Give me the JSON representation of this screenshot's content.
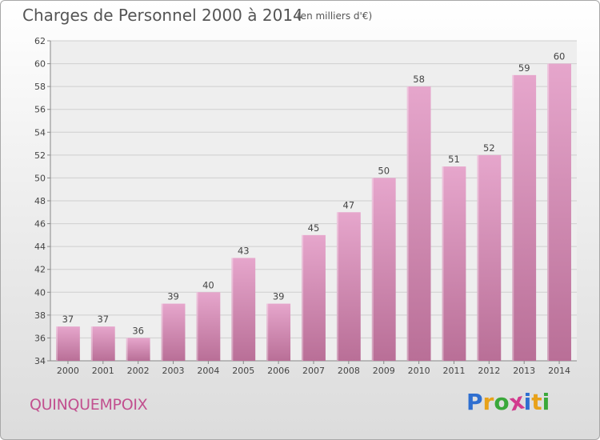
{
  "header": {
    "title": "Charges de Personnel 2000 à 2014",
    "subtitle": "(en milliers d'€)"
  },
  "footer": {
    "commune": "QUINQUEMPOIX",
    "logo_letters": [
      "P",
      "r",
      "o",
      "x",
      "i",
      "t",
      "i"
    ],
    "logo_colors": [
      "#2f6fd0",
      "#e8a21a",
      "#3aa83a",
      "#d23b8e",
      "#2f6fd0",
      "#e8a21a",
      "#3aa83a"
    ]
  },
  "colors": {
    "bar_light": "#e6a6cc",
    "bar_dark": "#b96f97",
    "grid": "#cfcfcf",
    "axis": "#888888"
  },
  "chart_data": {
    "type": "bar",
    "title": "Charges de Personnel 2000 à 2014",
    "subtitle": "(en milliers d'€)",
    "xlabel": "",
    "ylabel": "",
    "categories": [
      "2000",
      "2001",
      "2002",
      "2003",
      "2004",
      "2005",
      "2006",
      "2007",
      "2008",
      "2009",
      "2010",
      "2011",
      "2012",
      "2013",
      "2014"
    ],
    "values": [
      37,
      37,
      36,
      39,
      40,
      43,
      39,
      45,
      47,
      50,
      58,
      51,
      52,
      59,
      60
    ],
    "ylim": [
      34,
      62
    ],
    "yticks": [
      34,
      36,
      38,
      40,
      42,
      44,
      46,
      48,
      50,
      52,
      54,
      56,
      58,
      60,
      62
    ],
    "grid": true,
    "data_labels": true
  }
}
